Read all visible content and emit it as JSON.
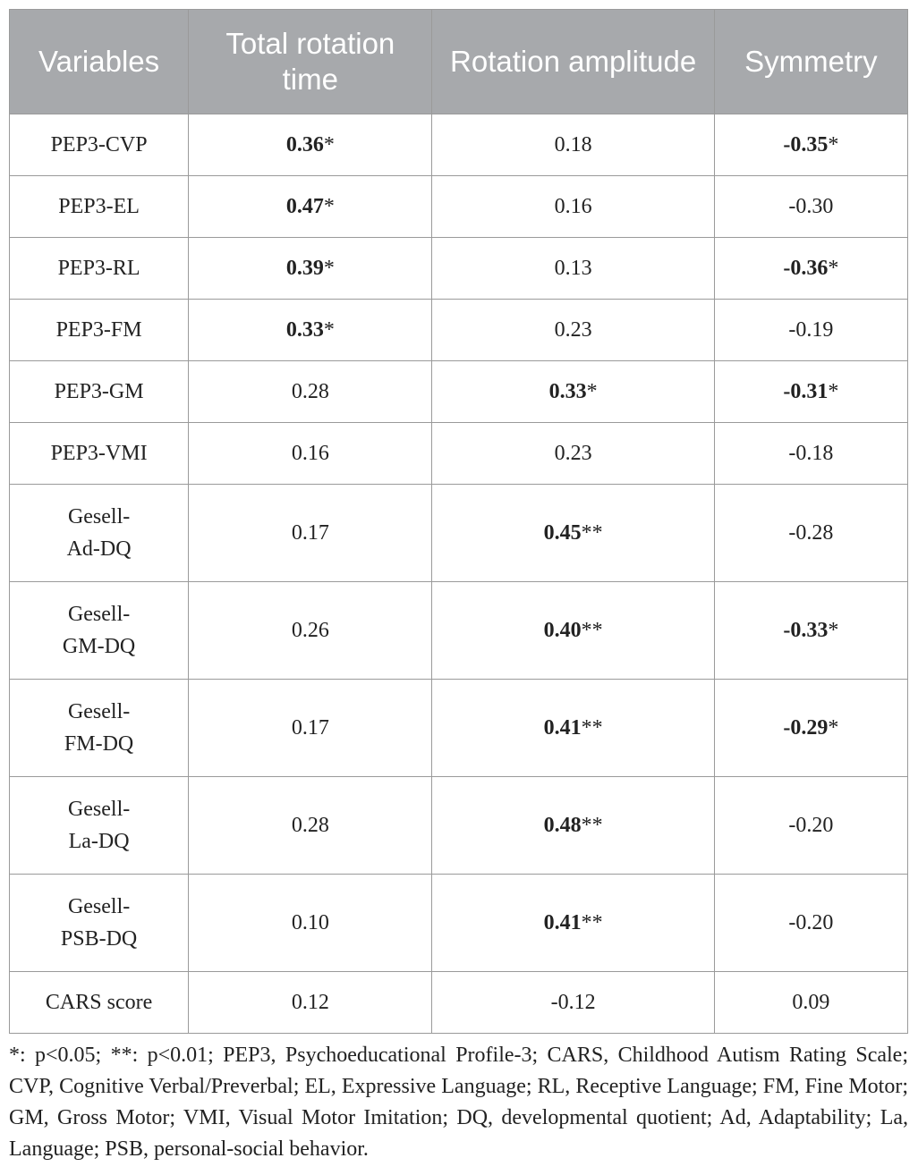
{
  "table": {
    "headers": [
      "Variables",
      "Total rotation time",
      "Rotation amplitude",
      "Symmetry"
    ],
    "rows": [
      {
        "variable": [
          "PEP3-CVP"
        ],
        "cells": [
          {
            "v": "0.36",
            "star": "*",
            "bold": true
          },
          {
            "v": "0.18",
            "star": "",
            "bold": false
          },
          {
            "v": "-0.35",
            "star": "*",
            "bold": true
          }
        ]
      },
      {
        "variable": [
          "PEP3-EL"
        ],
        "cells": [
          {
            "v": "0.47",
            "star": "*",
            "bold": true
          },
          {
            "v": "0.16",
            "star": "",
            "bold": false
          },
          {
            "v": "-0.30",
            "star": "",
            "bold": false
          }
        ]
      },
      {
        "variable": [
          "PEP3-RL"
        ],
        "cells": [
          {
            "v": "0.39",
            "star": "*",
            "bold": true
          },
          {
            "v": "0.13",
            "star": "",
            "bold": false
          },
          {
            "v": "-0.36",
            "star": "*",
            "bold": true
          }
        ]
      },
      {
        "variable": [
          "PEP3-FM"
        ],
        "cells": [
          {
            "v": "0.33",
            "star": "*",
            "bold": true
          },
          {
            "v": "0.23",
            "star": "",
            "bold": false
          },
          {
            "v": "-0.19",
            "star": "",
            "bold": false
          }
        ]
      },
      {
        "variable": [
          "PEP3-GM"
        ],
        "cells": [
          {
            "v": "0.28",
            "star": "",
            "bold": false
          },
          {
            "v": "0.33",
            "star": "*",
            "bold": true
          },
          {
            "v": "-0.31",
            "star": "*",
            "bold": true
          }
        ]
      },
      {
        "variable": [
          "PEP3-VMI"
        ],
        "cells": [
          {
            "v": "0.16",
            "star": "",
            "bold": false
          },
          {
            "v": "0.23",
            "star": "",
            "bold": false
          },
          {
            "v": "-0.18",
            "star": "",
            "bold": false
          }
        ]
      },
      {
        "variable": [
          "Gesell-",
          "Ad-DQ"
        ],
        "cells": [
          {
            "v": "0.17",
            "star": "",
            "bold": false
          },
          {
            "v": "0.45",
            "star": "**",
            "bold": true
          },
          {
            "v": "-0.28",
            "star": "",
            "bold": false
          }
        ]
      },
      {
        "variable": [
          "Gesell-",
          "GM-DQ"
        ],
        "cells": [
          {
            "v": "0.26",
            "star": "",
            "bold": false
          },
          {
            "v": "0.40",
            "star": "**",
            "bold": true
          },
          {
            "v": "-0.33",
            "star": "*",
            "bold": true
          }
        ]
      },
      {
        "variable": [
          "Gesell-",
          "FM-DQ"
        ],
        "cells": [
          {
            "v": "0.17",
            "star": "",
            "bold": false
          },
          {
            "v": "0.41",
            "star": "**",
            "bold": true
          },
          {
            "v": "-0.29",
            "star": "*",
            "bold": true
          }
        ]
      },
      {
        "variable": [
          "Gesell-",
          "La-DQ"
        ],
        "cells": [
          {
            "v": "0.28",
            "star": "",
            "bold": false
          },
          {
            "v": "0.48",
            "star": "**",
            "bold": true
          },
          {
            "v": "-0.20",
            "star": "",
            "bold": false
          }
        ]
      },
      {
        "variable": [
          "Gesell-",
          "PSB-DQ"
        ],
        "cells": [
          {
            "v": "0.10",
            "star": "",
            "bold": false
          },
          {
            "v": "0.41",
            "star": "**",
            "bold": true
          },
          {
            "v": "-0.20",
            "star": "",
            "bold": false
          }
        ]
      },
      {
        "variable": [
          "CARS score"
        ],
        "cells": [
          {
            "v": "0.12",
            "star": "",
            "bold": false
          },
          {
            "v": "-0.12",
            "star": "",
            "bold": false
          },
          {
            "v": "0.09",
            "star": "",
            "bold": false
          }
        ]
      }
    ]
  },
  "footnote": "*: p<0.05; **: p<0.01; PEP3, Psychoeducational Profile-3; CARS, Childhood Autism Rating Scale; CVP, Cognitive Verbal/Preverbal; EL, Expressive Language; RL, Receptive Language; FM, Fine Motor; GM, Gross Motor; VMI, Visual Motor Imitation; DQ, developmental quotient; Ad, Adaptability; La, Language; PSB, personal-social behavior.",
  "colors": {
    "header_bg": "#a7a9ac",
    "header_text": "#ffffff",
    "border": "#9a9a9a"
  }
}
